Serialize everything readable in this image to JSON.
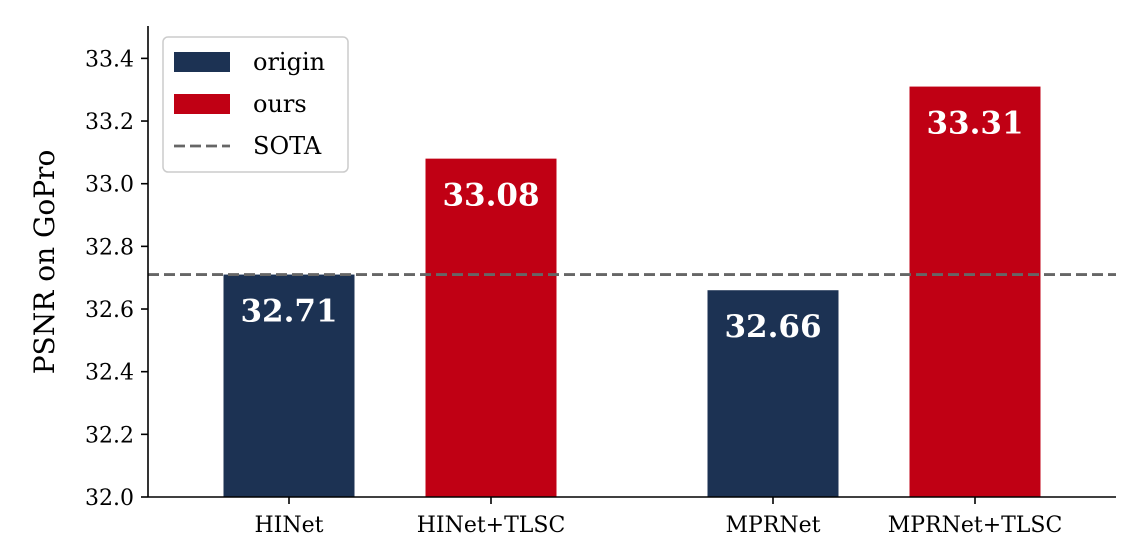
{
  "chart_data": {
    "type": "bar",
    "ylabel": "PSNR on GoPro",
    "ylim": [
      32.0,
      33.5
    ],
    "yticks": [
      "32.0",
      "32.2",
      "32.4",
      "32.6",
      "32.8",
      "33.0",
      "33.2",
      "33.4"
    ],
    "categories": [
      "HINet",
      "HINet+TLSC",
      "MPRNet",
      "MPRNet+TLSC"
    ],
    "bars": [
      {
        "category": "HINet",
        "series": "origin",
        "value": 32.71,
        "label": "32.71"
      },
      {
        "category": "HINet+TLSC",
        "series": "ours",
        "value": 33.08,
        "label": "33.08"
      },
      {
        "category": "MPRNet",
        "series": "origin",
        "value": 32.66,
        "label": "32.66"
      },
      {
        "category": "MPRNet+TLSC",
        "series": "ours",
        "value": 33.31,
        "label": "33.31"
      }
    ],
    "reference_line": {
      "name": "SOTA",
      "value": 32.71,
      "style": "dashed",
      "color": "#666666"
    },
    "legend": {
      "placement": "top-left",
      "entries": [
        {
          "label": "origin",
          "color": "#1c3253",
          "kind": "patch"
        },
        {
          "label": "ours",
          "color": "#c00014",
          "kind": "patch"
        },
        {
          "label": "SOTA",
          "color": "#666666",
          "kind": "dashed-line"
        }
      ]
    },
    "colors": {
      "origin": "#1c3253",
      "ours": "#c00014"
    },
    "grid": false
  }
}
